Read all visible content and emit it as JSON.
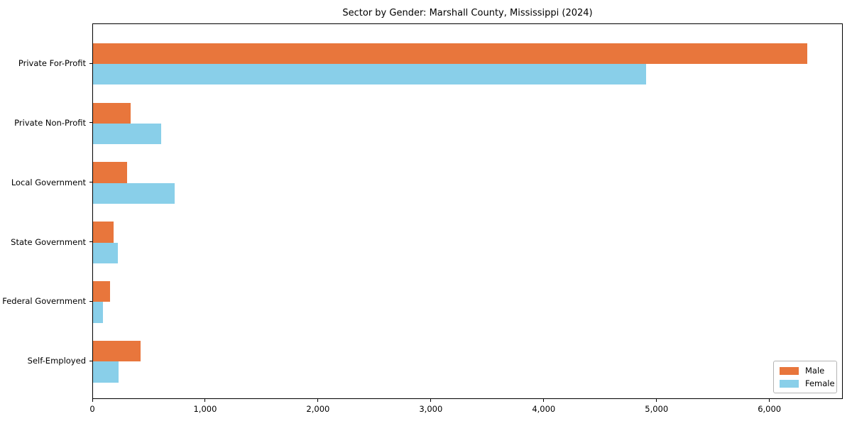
{
  "chart_data": {
    "type": "bar",
    "orientation": "horizontal",
    "title": "Sector by Gender: Marshall County, Mississippi (2024)",
    "categories": [
      "Private For-Profit",
      "Private Non-Profit",
      "Local Government",
      "State Government",
      "Federal Government",
      "Self-Employed"
    ],
    "series": [
      {
        "name": "Male",
        "color": "#e8763c",
        "values": [
          6330,
          335,
          300,
          185,
          150,
          420
        ]
      },
      {
        "name": "Female",
        "color": "#89cfe9",
        "values": [
          4900,
          605,
          725,
          220,
          85,
          225
        ]
      }
    ],
    "xlabel": "",
    "ylabel": "",
    "xlim": [
      0,
      6650
    ],
    "x_ticks": [
      0,
      1000,
      2000,
      3000,
      4000,
      5000,
      6000
    ],
    "x_tick_labels": [
      "0",
      "1,000",
      "2,000",
      "3,000",
      "4,000",
      "5,000",
      "6,000"
    ],
    "grid": false,
    "legend": {
      "position": "lower right",
      "entries": [
        "Male",
        "Female"
      ]
    },
    "colors": {
      "background": "#ffffff",
      "axis": "#000000",
      "male": "#e8763c",
      "female": "#89cfe9"
    }
  }
}
